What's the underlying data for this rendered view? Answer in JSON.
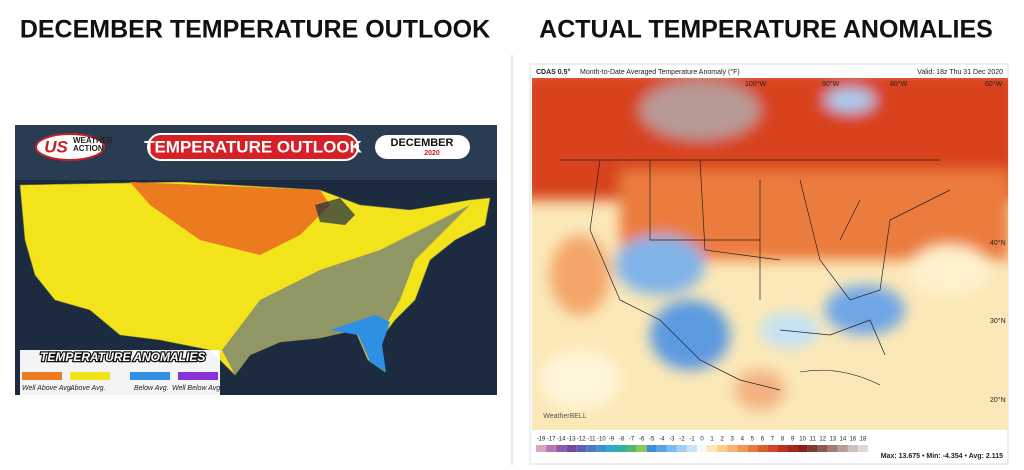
{
  "left": {
    "title": "DECEMBER TEMPERATURE OUTLOOK",
    "logo": {
      "short": "US",
      "text": "WEATHER ACTION"
    },
    "banner": "TEMPERATURE OUTLOOK",
    "month": {
      "name": "DECEMBER",
      "year": "2020"
    },
    "legend": {
      "title": "TEMPERATURE ANOMALIES",
      "items": [
        "Well Above Avg.",
        "Above Avg.",
        "Below Avg.",
        "Well Below Avg."
      ]
    }
  },
  "right": {
    "title": "ACTUAL TEMPERATURE ANOMALIES",
    "header": {
      "model": "CDAS 0.5°",
      "description": "Month-to-Date Averaged Temperature Anomaly (°F)",
      "valid": "Valid: 18z Thu 31 Dec 2020"
    },
    "longitudes": [
      "100°W",
      "90°W",
      "80°W",
      "60°W"
    ],
    "latitudes": [
      "40°N",
      "30°N",
      "20°N"
    ],
    "credit": "WeatherBELL",
    "colorbar": [
      -19,
      -17,
      -14,
      -13,
      -12,
      -11,
      -10,
      -9,
      -8,
      -7,
      -6,
      -5,
      -4,
      -3,
      -2,
      -1,
      0,
      1,
      2,
      3,
      4,
      5,
      6,
      7,
      8,
      9,
      10,
      11,
      12,
      13,
      14,
      16,
      18
    ],
    "stats": "Max: 13.675 • Min: -4.354 • Avg: 2.115"
  }
}
